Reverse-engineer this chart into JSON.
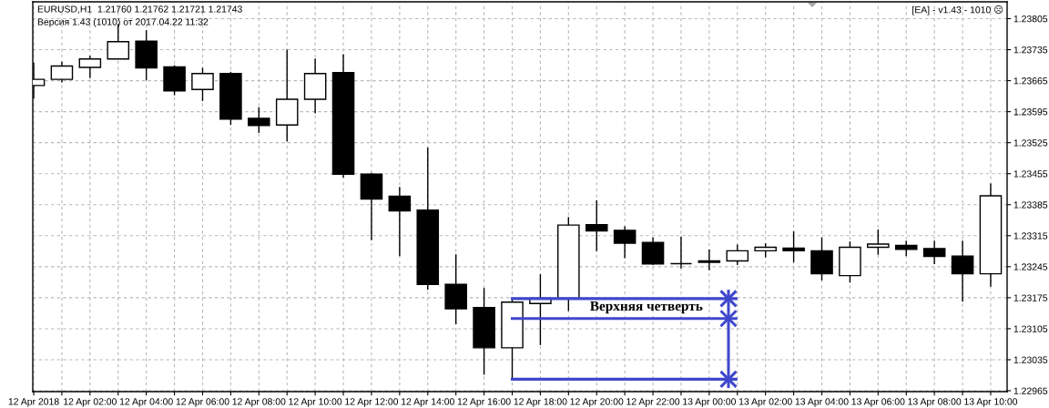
{
  "chart_data": {
    "type": "candlestick",
    "title": "EURUSD,H1  1.21760 1.21762 1.21721 1.21743",
    "subtitle": "Версия 1.43 (1010) от 2017.04.22 11:32",
    "annotations": [
      "[EA] - v1.43 - 1010 ☹",
      {
        "text": "Верхняя четверть",
        "x": "2018-04-12T21:46",
        "y": 1.23128
      }
    ],
    "x": [
      "2018-04-12T00:00",
      "2018-04-12T01:00",
      "2018-04-12T02:00",
      "2018-04-12T03:00",
      "2018-04-12T04:00",
      "2018-04-12T05:00",
      "2018-04-12T06:00",
      "2018-04-12T07:00",
      "2018-04-12T08:00",
      "2018-04-12T09:00",
      "2018-04-12T10:00",
      "2018-04-12T11:00",
      "2018-04-12T12:00",
      "2018-04-12T13:00",
      "2018-04-12T14:00",
      "2018-04-12T15:00",
      "2018-04-12T16:00",
      "2018-04-12T17:00",
      "2018-04-12T18:00",
      "2018-04-12T19:00",
      "2018-04-12T20:00",
      "2018-04-12T21:00",
      "2018-04-12T22:00",
      "2018-04-12T23:00",
      "2018-04-13T00:00",
      "2018-04-13T01:00",
      "2018-04-13T02:00",
      "2018-04-13T03:00",
      "2018-04-13T04:00",
      "2018-04-13T05:00",
      "2018-04-13T06:00",
      "2018-04-13T07:00",
      "2018-04-13T08:00",
      "2018-04-13T09:00",
      "2018-04-13T10:00"
    ],
    "ohlc": [
      [
        1.23654,
        1.23705,
        1.23625,
        1.23668
      ],
      [
        1.23668,
        1.23708,
        1.23661,
        1.23698
      ],
      [
        1.23695,
        1.23721,
        1.23671,
        1.23714
      ],
      [
        1.23714,
        1.23793,
        1.23714,
        1.23753
      ],
      [
        1.23754,
        1.23779,
        1.23666,
        1.23694
      ],
      [
        1.23696,
        1.237,
        1.23632,
        1.23642
      ],
      [
        1.23645,
        1.23694,
        1.23619,
        1.23681
      ],
      [
        1.23681,
        1.23685,
        1.23565,
        1.23578
      ],
      [
        1.2358,
        1.23605,
        1.23547,
        1.23564
      ],
      [
        1.23565,
        1.23735,
        1.23528,
        1.23623
      ],
      [
        1.23623,
        1.23715,
        1.23591,
        1.23681
      ],
      [
        1.23683,
        1.23725,
        1.23446,
        1.23454
      ],
      [
        1.23454,
        1.23457,
        1.23305,
        1.23398
      ],
      [
        1.23404,
        1.23425,
        1.23269,
        1.23371
      ],
      [
        1.23373,
        1.23514,
        1.23193,
        1.23205
      ],
      [
        1.23205,
        1.23273,
        1.23115,
        1.2315
      ],
      [
        1.23153,
        1.23197,
        1.23001,
        1.23062
      ],
      [
        1.23062,
        1.23173,
        1.22991,
        1.23165
      ],
      [
        1.23162,
        1.23228,
        1.23068,
        1.23174
      ],
      [
        1.23174,
        1.23357,
        1.23145,
        1.23339
      ],
      [
        1.2334,
        1.23395,
        1.2328,
        1.23326
      ],
      [
        1.23327,
        1.23336,
        1.23264,
        1.23298
      ],
      [
        1.233,
        1.23311,
        1.23249,
        1.23251
      ],
      [
        1.23252,
        1.23313,
        1.23241,
        1.23252
      ],
      [
        1.23258,
        1.23284,
        1.23237,
        1.23255
      ],
      [
        1.23258,
        1.23295,
        1.23249,
        1.23281
      ],
      [
        1.23281,
        1.23298,
        1.23266,
        1.23289
      ],
      [
        1.23287,
        1.23325,
        1.23255,
        1.23281
      ],
      [
        1.23281,
        1.23311,
        1.23214,
        1.23229
      ],
      [
        1.23225,
        1.23302,
        1.23209,
        1.23289
      ],
      [
        1.23289,
        1.23329,
        1.23272,
        1.23296
      ],
      [
        1.23293,
        1.23304,
        1.23269,
        1.23284
      ],
      [
        1.23286,
        1.23304,
        1.23251,
        1.23268
      ],
      [
        1.23269,
        1.23304,
        1.23166,
        1.23229
      ],
      [
        1.23229,
        1.23433,
        1.232,
        1.23405
      ]
    ],
    "color": "#000000",
    "colors": [
      "#ffffff",
      "#ffffff",
      "#ffffff",
      "#ffffff",
      "#000000",
      "#000000",
      "#ffffff",
      "#000000",
      "#000000",
      "#ffffff",
      "#ffffff",
      "#000000",
      "#000000",
      "#000000",
      "#000000",
      "#000000",
      "#000000",
      "#ffffff",
      "#ffffff",
      "#ffffff",
      "#000000",
      "#000000",
      "#000000",
      "#000000",
      "#000000",
      "#ffffff",
      "#ffffff",
      "#000000",
      "#000000",
      "#ffffff",
      "#ffffff",
      "#000000",
      "#000000",
      "#000000",
      "#ffffff"
    ],
    "series": [
      {
        "type": "line",
        "color": "#3f48cc",
        "x": [
          "2018-04-12T16:57",
          "2018-04-13T01:00"
        ],
        "values": [
          1.23173,
          1.23173
        ]
      },
      {
        "type": "line",
        "color": "#3f48cc",
        "x": [
          "2018-04-12T16:57",
          "2018-04-13T01:00"
        ],
        "values": [
          1.23128,
          1.23128
        ]
      },
      {
        "type": "line",
        "color": "#3f48cc",
        "x": [
          "2018-04-12T16:57",
          "2018-04-13T01:00"
        ],
        "values": [
          1.22991,
          1.22991
        ]
      },
      {
        "type": "line",
        "color": "#3f48cc",
        "x": [
          "2018-04-13T00:41",
          "2018-04-13T00:41"
        ],
        "values": [
          1.22971,
          1.23193
        ]
      },
      {
        "type": "scatter",
        "color": "#3f48cc",
        "marker": "cross",
        "x": [
          "2018-04-13T00:41",
          "2018-04-13T00:41",
          "2018-04-13T00:41"
        ],
        "values": [
          1.22991,
          1.23128,
          1.23173
        ]
      }
    ],
    "xlim": [
      "2018-04-11T23:58",
      "2018-04-13T10:35"
    ],
    "ylim": [
      1.22963,
      1.23843
    ],
    "xticks": [
      {
        "value": "2018-04-12T00:00",
        "label": "12 Apr 2018"
      },
      {
        "value": "2018-04-12T01:00",
        "label": null
      },
      {
        "value": "2018-04-12T02:00",
        "label": "12 Apr 02:00"
      },
      {
        "value": "2018-04-12T03:00",
        "label": null
      },
      {
        "value": "2018-04-12T04:00",
        "label": "12 Apr 04:00"
      },
      {
        "value": "2018-04-12T05:00",
        "label": null
      },
      {
        "value": "2018-04-12T06:00",
        "label": "12 Apr 06:00"
      },
      {
        "value": "2018-04-12T07:00",
        "label": null
      },
      {
        "value": "2018-04-12T08:00",
        "label": "12 Apr 08:00"
      },
      {
        "value": "2018-04-12T09:00",
        "label": null
      },
      {
        "value": "2018-04-12T10:00",
        "label": "12 Apr 10:00"
      },
      {
        "value": "2018-04-12T11:00",
        "label": null
      },
      {
        "value": "2018-04-12T12:00",
        "label": "12 Apr 12:00"
      },
      {
        "value": "2018-04-12T13:00",
        "label": null
      },
      {
        "value": "2018-04-12T14:00",
        "label": "12 Apr 14:00"
      },
      {
        "value": "2018-04-12T15:00",
        "label": null
      },
      {
        "value": "2018-04-12T16:00",
        "label": "12 Apr 16:00"
      },
      {
        "value": "2018-04-12T17:00",
        "label": null
      },
      {
        "value": "2018-04-12T18:00",
        "label": "12 Apr 18:00"
      },
      {
        "value": "2018-04-12T19:00",
        "label": null
      },
      {
        "value": "2018-04-12T20:00",
        "label": "12 Apr 20:00"
      },
      {
        "value": "2018-04-12T21:00",
        "label": null
      },
      {
        "value": "2018-04-12T22:00",
        "label": "12 Apr 22:00"
      },
      {
        "value": "2018-04-12T23:00",
        "label": null
      },
      {
        "value": "2018-04-13T00:00",
        "label": "13 Apr 00:00"
      },
      {
        "value": "2018-04-13T01:00",
        "label": null
      },
      {
        "value": "2018-04-13T02:00",
        "label": "13 Apr 02:00"
      },
      {
        "value": "2018-04-13T03:00",
        "label": null
      },
      {
        "value": "2018-04-13T04:00",
        "label": "13 Apr 04:00"
      },
      {
        "value": "2018-04-13T05:00",
        "label": null
      },
      {
        "value": "2018-04-13T06:00",
        "label": "13 Apr 06:00"
      },
      {
        "value": "2018-04-13T07:00",
        "label": null
      },
      {
        "value": "2018-04-13T08:00",
        "label": "13 Apr 08:00"
      },
      {
        "value": "2018-04-13T09:00",
        "label": null
      },
      {
        "value": "2018-04-13T10:00",
        "label": "13 Apr 10:00"
      }
    ],
    "yticks": [
      1.22965,
      1.23035,
      1.23105,
      1.23175,
      1.23245,
      1.23315,
      1.23385,
      1.23455,
      1.23525,
      1.23595,
      1.23665,
      1.23735,
      1.23805
    ],
    "grid": true
  }
}
